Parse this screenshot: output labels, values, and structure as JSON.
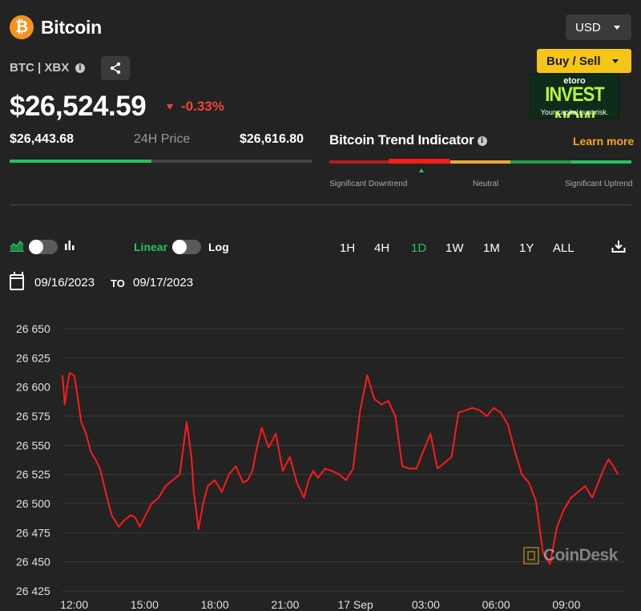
{
  "header": {
    "logo_glyph": "₿",
    "title": "Bitcoin",
    "ticker": "BTC | XBX",
    "currency": "USD",
    "buy_sell_label": "Buy / Sell",
    "ad": {
      "brand": "etoro",
      "headline": "INVEST NOW",
      "disclaimer": "Your capital is at risk."
    }
  },
  "price": {
    "current": "$26,524.59",
    "change": "-0.33%",
    "direction": "down",
    "low_24h": "$26,443.68",
    "range_label": "24H Price",
    "high_24h": "$26,616.80",
    "range_position": 0.47
  },
  "trend": {
    "title": "Bitcoin Trend Indicator",
    "learn_more": "Learn more",
    "labels": [
      "Significant Downtrend",
      "Neutral",
      "Significant Uptrend"
    ],
    "segment_colors": [
      "#b31b1b",
      "#e02020",
      "#f0a830",
      "#1f9e4a",
      "#23c45e"
    ],
    "indicator_position": 0.3
  },
  "controls": {
    "scale_linear": "Linear",
    "scale_log": "Log",
    "timeframes": [
      "1H",
      "4H",
      "1D",
      "1W",
      "1M",
      "1Y",
      "ALL"
    ],
    "active_timeframe": "1D",
    "date_from": "09/16/2023",
    "date_to_label": "TO",
    "date_until": "09/17/2023"
  },
  "colors": {
    "accent_green": "#23c45e",
    "negative": "#f44336",
    "line": "#ff1a1a",
    "highlight": "#f5c518"
  },
  "watermark": "CoinDesk",
  "chart_data": {
    "type": "line",
    "title": "",
    "xlabel": "",
    "ylabel": "",
    "ylim": [
      26425,
      26650
    ],
    "yticks": [
      "26 650",
      "26 625",
      "26 600",
      "26 575",
      "26 550",
      "26 525",
      "26 500",
      "26 475",
      "26 450",
      "26 425"
    ],
    "ytick_values": [
      26650,
      26625,
      26600,
      26575,
      26550,
      26525,
      26500,
      26475,
      26450,
      26425
    ],
    "xticks": [
      "12:00",
      "15:00",
      "18:00",
      "21:00",
      "17 Sep",
      "03:00",
      "06:00",
      "09:00"
    ],
    "xtick_hours": [
      12,
      15,
      18,
      21,
      24,
      27,
      30,
      33
    ],
    "xlim_hours": [
      11.5,
      35.5
    ],
    "grid": "horizontal",
    "series": [
      {
        "color": "#ff1a1a",
        "x_hours": [
          11.5,
          11.6,
          11.7,
          11.8,
          12.0,
          12.1,
          12.3,
          12.5,
          12.7,
          12.9,
          13.1,
          13.4,
          13.6,
          13.9,
          14.1,
          14.4,
          14.6,
          14.8,
          15.1,
          15.3,
          15.6,
          15.9,
          16.2,
          16.5,
          16.8,
          17.0,
          17.1,
          17.3,
          17.5,
          17.7,
          18.0,
          18.3,
          18.6,
          18.9,
          19.2,
          19.4,
          19.6,
          19.8,
          20.0,
          20.3,
          20.6,
          20.9,
          21.2,
          21.5,
          21.8,
          22.0,
          22.2,
          22.4,
          22.7,
          23.0,
          23.3,
          23.6,
          23.9,
          24.2,
          24.5,
          24.8,
          25.1,
          25.4,
          25.7,
          26.0,
          26.3,
          26.6,
          26.9,
          27.2,
          27.5,
          27.8,
          28.1,
          28.4,
          28.7,
          29.0,
          29.3,
          29.6,
          29.9,
          30.2,
          30.5,
          30.8,
          31.1,
          31.4,
          31.7,
          32.0,
          32.3,
          32.6,
          32.9,
          33.2,
          33.5,
          33.8,
          34.1,
          34.4,
          34.6,
          34.8,
          35.0,
          35.2
        ],
        "y": [
          26610,
          26585,
          26600,
          26612,
          26610,
          26598,
          26570,
          26560,
          26545,
          26538,
          26530,
          26505,
          26490,
          26480,
          26485,
          26490,
          26488,
          26480,
          26492,
          26500,
          26505,
          26515,
          26520,
          26525,
          26570,
          26540,
          26510,
          26478,
          26500,
          26515,
          26520,
          26510,
          26525,
          26532,
          26518,
          26520,
          26528,
          26548,
          26565,
          26548,
          26560,
          26528,
          26540,
          26518,
          26505,
          26520,
          26528,
          26522,
          26530,
          26528,
          26525,
          26520,
          26530,
          26580,
          26610,
          26590,
          26585,
          26588,
          26575,
          26532,
          26530,
          26530,
          26545,
          26560,
          26530,
          26535,
          26540,
          26578,
          26580,
          26582,
          26580,
          26575,
          26582,
          26578,
          26568,
          26545,
          26525,
          26518,
          26502,
          26458,
          26448,
          26480,
          26495,
          26505,
          26510,
          26515,
          26505,
          26520,
          26530,
          26538,
          26532,
          26525
        ]
      }
    ]
  }
}
